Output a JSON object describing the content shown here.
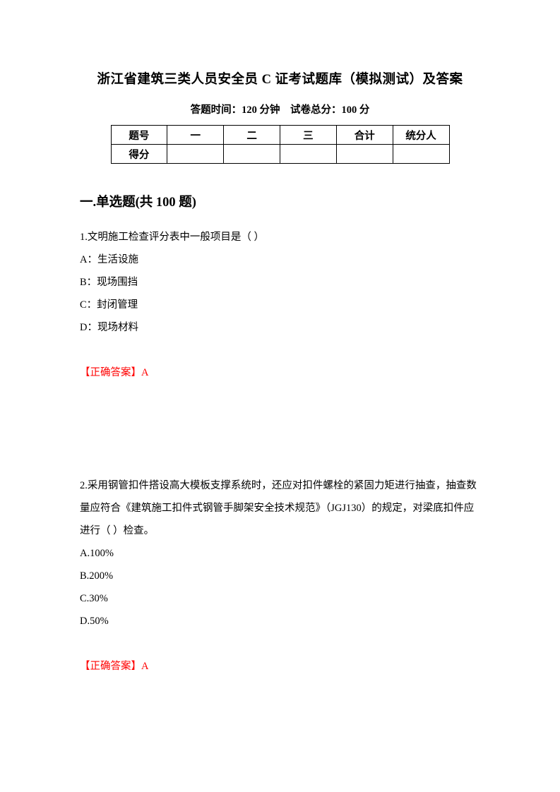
{
  "title": "浙江省建筑三类人员安全员 C 证考试题库（模拟测试）及答案",
  "subtitle": "答题时间：120 分钟 试卷总分：100 分",
  "table": {
    "header": [
      "题号",
      "一",
      "二",
      "三",
      "合计",
      "统分人"
    ],
    "row_label": "得分"
  },
  "section_heading": "一.单选题(共 100 题)",
  "questions": [
    {
      "stem": "1.文明施工检查评分表中一般项目是（ ）",
      "options": [
        "A：生活设施",
        "B：现场围挡",
        "C：封闭管理",
        "D：现场材料"
      ],
      "answer": "【正确答案】A"
    },
    {
      "stem": "2.采用钢管扣件搭设高大模板支撑系统时，还应对扣件螺栓的紧固力矩进行抽查，抽查数量应符合《建筑施工扣件式钢管手脚架安全技术规范》（JGJ130）的规定，对梁底扣件应进行（ ）检查。",
      "options": [
        "A.100%",
        "B.200%",
        "C.30%",
        "D.50%"
      ],
      "answer": "【正确答案】A"
    }
  ],
  "colors": {
    "text": "#000000",
    "answer": "#ff0000",
    "background": "#ffffff",
    "border": "#000000"
  },
  "typography": {
    "title_fontsize": 18.5,
    "subtitle_fontsize": 14.5,
    "body_fontsize": 14.5,
    "section_fontsize": 18.5,
    "line_height": 32
  }
}
